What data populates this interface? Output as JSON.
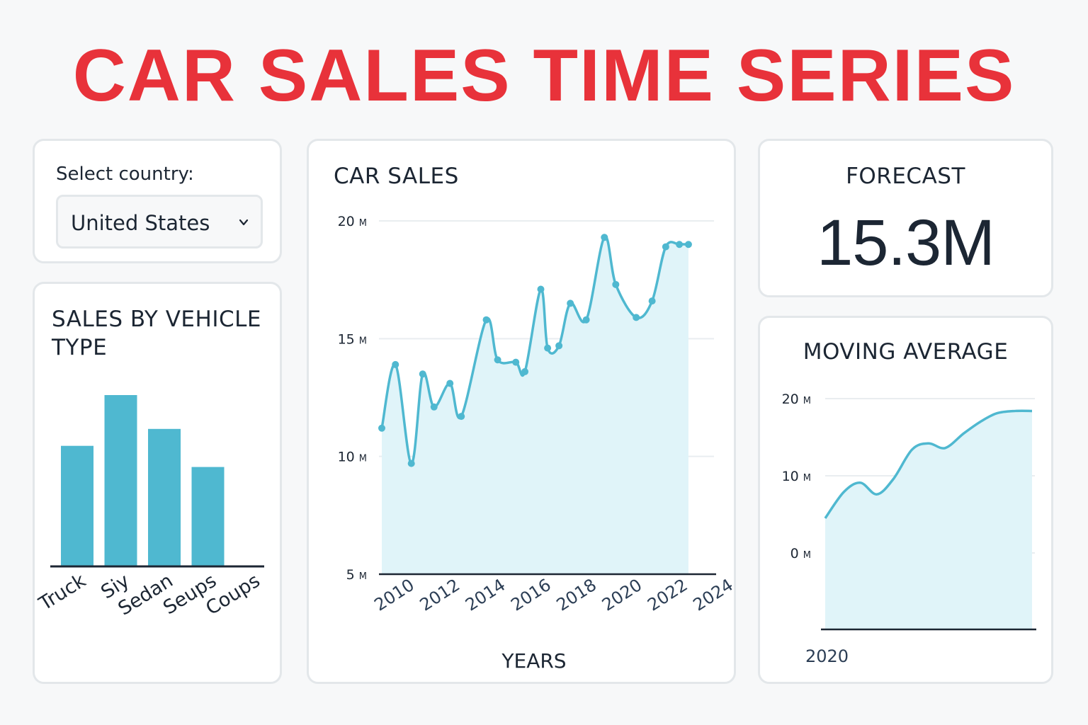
{
  "title": "CAR SALES TIME SERIES",
  "colors": {
    "title": "#e8323a",
    "accent": "#4fb8d0",
    "fill": "#e0f4f9",
    "text": "#1c2633"
  },
  "country": {
    "label": "Select country:",
    "selected": "United States",
    "icon": "chevron-down-icon"
  },
  "vehicle_panel": {
    "title_line1": "SALES BY VEHICLE",
    "title_line2": "TYPE"
  },
  "sales_panel": {
    "title": "CAR SALES"
  },
  "forecast": {
    "title": "FORECAST",
    "value": "15.3M"
  },
  "moving_panel": {
    "title": "MOVING AVERAGE"
  },
  "chart_data": [
    {
      "type": "bar",
      "title": "SALES BY VEHICLE TYPE",
      "categories": [
        "Truck",
        "Siy",
        "Sedan",
        "Seups",
        "Coups"
      ],
      "values": [
        5.7,
        8.1,
        6.5,
        4.7,
        null
      ],
      "xlabel": "",
      "ylabel": "",
      "grid": false
    },
    {
      "type": "area",
      "title": "CAR SALES",
      "xlabel": "YEARS",
      "ylabel": "",
      "unit": "M",
      "x_ticks": [
        "2010",
        "2012",
        "2014",
        "2016",
        "2018",
        "2020",
        "2022",
        "2024"
      ],
      "y_ticks": [
        20,
        15,
        10,
        5
      ],
      "ylim": [
        5,
        20
      ],
      "xlim": [
        2009.5,
        2024
      ],
      "grid": true,
      "x": [
        2009.5,
        2010.1,
        2010.8,
        2011.3,
        2011.8,
        2012.5,
        2013.0,
        2014.1,
        2014.6,
        2015.4,
        2015.8,
        2016.5,
        2016.8,
        2017.3,
        2017.8,
        2018.5,
        2019.3,
        2019.8,
        2020.7,
        2021.4,
        2022.0,
        2022.6,
        2023.0
      ],
      "values": [
        11.2,
        13.9,
        9.7,
        13.5,
        12.1,
        13.1,
        11.7,
        15.8,
        14.1,
        14.0,
        13.6,
        17.1,
        14.6,
        14.7,
        16.5,
        15.8,
        19.3,
        17.3,
        15.9,
        16.6,
        18.9,
        19.0,
        19.0
      ]
    },
    {
      "type": "area",
      "title": "MOVING AVERAGE",
      "unit": "M",
      "x_ticks": [
        "2020"
      ],
      "y_ticks": [
        20,
        10,
        0
      ],
      "ylim": [
        0,
        20
      ],
      "grid": true,
      "x": [
        0,
        0.09,
        0.17,
        0.25,
        0.33,
        0.42,
        0.5,
        0.58,
        0.67,
        0.75,
        0.83,
        0.92,
        1.0
      ],
      "values": [
        4.5,
        7.9,
        9.1,
        7.6,
        9.6,
        13.4,
        14.2,
        13.6,
        15.5,
        17.0,
        18.1,
        18.4,
        18.4
      ]
    }
  ]
}
